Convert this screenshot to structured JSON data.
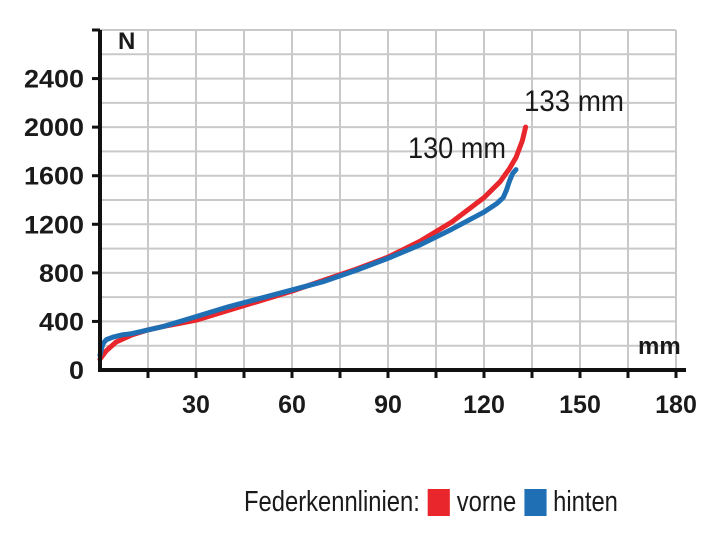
{
  "chart_data": {
    "type": "line",
    "title": "",
    "xlabel": "mm",
    "ylabel": "N",
    "xlim": [
      0,
      180
    ],
    "ylim": [
      0,
      2800
    ],
    "x_ticks": [
      "30",
      "60",
      "90",
      "120",
      "150",
      "180"
    ],
    "y_ticks": [
      "0",
      "400",
      "800",
      "1200",
      "1600",
      "2000",
      "2400"
    ],
    "grid": true,
    "legend_title": "Federkennlinien:",
    "legend_position": "bottom-right",
    "series": [
      {
        "name": "vorne",
        "color": "#e8262b",
        "x": [
          0,
          2,
          5,
          10,
          15,
          20,
          25,
          30,
          40,
          50,
          60,
          70,
          80,
          90,
          100,
          110,
          120,
          125,
          128,
          130,
          132,
          133
        ],
        "y": [
          90,
          160,
          230,
          290,
          330,
          360,
          385,
          410,
          490,
          570,
          650,
          740,
          830,
          930,
          1060,
          1220,
          1420,
          1550,
          1660,
          1750,
          1890,
          2000
        ]
      },
      {
        "name": "hinten",
        "color": "#1f6fb5",
        "x": [
          0,
          0.5,
          1,
          2,
          4,
          7,
          10,
          15,
          20,
          30,
          40,
          50,
          60,
          70,
          80,
          90,
          100,
          110,
          120,
          124,
          126,
          127,
          128,
          129,
          130
        ],
        "y": [
          120,
          180,
          220,
          250,
          270,
          290,
          300,
          330,
          360,
          440,
          520,
          590,
          660,
          730,
          820,
          920,
          1030,
          1160,
          1300,
          1370,
          1420,
          1480,
          1560,
          1620,
          1650
        ]
      }
    ],
    "annotations": [
      "130 mm",
      "133 mm"
    ]
  }
}
